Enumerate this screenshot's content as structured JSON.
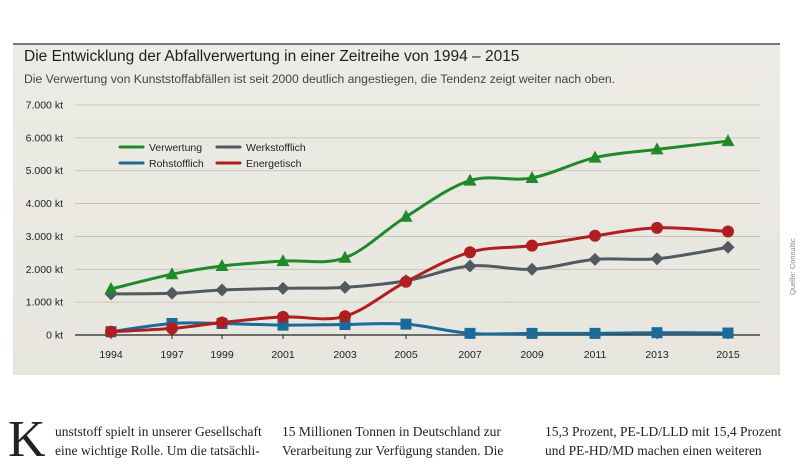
{
  "header": {
    "title": "Die Entwicklung der Abfallverwertung in einer Zeitreihe von 1994 – 2015",
    "subtitle": "Die Verwertung von Kunststoffabfällen ist seit 2000 deutlich angestiegen, die Tendenz zeigt weiter nach oben."
  },
  "source": "Quelle: Consultic",
  "chart_data": {
    "type": "line",
    "title": "Die Entwicklung der Abfallverwertung in einer Zeitreihe von 1994 – 2015",
    "subtitle": "Die Verwertung von Kunststoffabfällen ist seit 2000 deutlich angestiegen, die Tendenz zeigt weiter nach oben.",
    "xlabel": "",
    "ylabel": "",
    "x": [
      1994,
      1997,
      1999,
      2001,
      2003,
      2005,
      2007,
      2009,
      2011,
      2013,
      2015
    ],
    "x_tick_labels": [
      "1994",
      "1997",
      "1999",
      "2001",
      "2003",
      "2005",
      "2007",
      "2009",
      "2011",
      "2013",
      "2015"
    ],
    "y_ticks": [
      0,
      1000,
      2000,
      3000,
      4000,
      5000,
      6000,
      7000
    ],
    "y_tick_labels": [
      "0 kt",
      "1.000 kt",
      "2.000 kt",
      "3.000 kt",
      "4.000 kt",
      "5.000 kt",
      "6.000 kt",
      "7.000 kt"
    ],
    "ylim": [
      0,
      7000
    ],
    "unit": "kt",
    "grid": true,
    "legend_position": "top-left",
    "series": [
      {
        "name": "Verwertung",
        "color": "#1f8a2a",
        "marker": "triangle",
        "values": [
          1400,
          1850,
          2100,
          2250,
          2350,
          3600,
          4700,
          4780,
          5400,
          5650,
          5900
        ]
      },
      {
        "name": "Werkstofflich",
        "color": "#505a60",
        "marker": "diamond",
        "values": [
          1250,
          1270,
          1370,
          1420,
          1450,
          1650,
          2100,
          2000,
          2300,
          2320,
          2670
        ]
      },
      {
        "name": "Rohstofflich",
        "color": "#1a6a9a",
        "marker": "square",
        "values": [
          100,
          350,
          350,
          300,
          320,
          330,
          50,
          50,
          50,
          70,
          60
        ]
      },
      {
        "name": "Energetisch",
        "color": "#b01e22",
        "marker": "circle",
        "values": [
          100,
          200,
          380,
          550,
          570,
          1620,
          2520,
          2720,
          3020,
          3260,
          3150
        ]
      }
    ]
  },
  "article": {
    "dropcap": "K",
    "col1_line1": "unststoff spielt in unserer Gesellschaft",
    "col1_line2": "eine wichtige Rolle. Um die tatsächli-",
    "col2_line1": "15 Millionen Tonnen in Deutschland zur",
    "col2_line2": "Verarbeitung zur Verfügung standen. Die",
    "col3_line1": "15,3 Prozent, PE-LD/LLD mit 15,4 Prozent",
    "col3_line2": "und PE-HD/MD machen einen weiteren"
  }
}
